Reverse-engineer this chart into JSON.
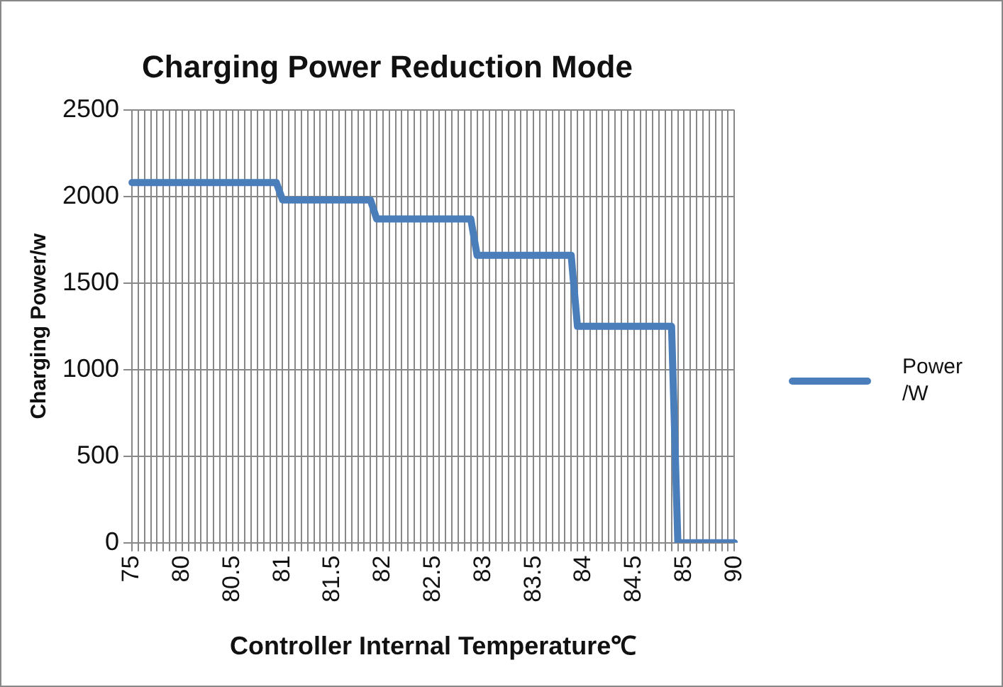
{
  "chart_data": {
    "type": "line",
    "title": "Charging Power Reduction Mode",
    "xlabel": "Controller Internal Temperature℃",
    "ylabel": "Charging Power/w",
    "categories": [
      "75",
      null,
      null,
      null,
      null,
      null,
      null,
      null,
      "80",
      null,
      null,
      null,
      null,
      null,
      null,
      null,
      "80.5",
      null,
      null,
      null,
      null,
      null,
      null,
      null,
      "81",
      null,
      null,
      null,
      null,
      null,
      null,
      null,
      "81.5",
      null,
      null,
      null,
      null,
      null,
      null,
      null,
      "82",
      null,
      null,
      null,
      null,
      null,
      null,
      null,
      "82.5",
      null,
      null,
      null,
      null,
      null,
      null,
      null,
      "83",
      null,
      null,
      null,
      null,
      null,
      null,
      null,
      "83.5",
      null,
      null,
      null,
      null,
      null,
      null,
      null,
      "84",
      null,
      null,
      null,
      null,
      null,
      null,
      null,
      "84.5",
      null,
      null,
      null,
      null,
      null,
      null,
      null,
      "85",
      null,
      null,
      null,
      null,
      null,
      null,
      null,
      "90"
    ],
    "series": [
      {
        "name": "Power /W",
        "color": "#4a7ebb",
        "values": [
          2080,
          2080,
          2080,
          2080,
          2080,
          2080,
          2080,
          2080,
          2080,
          2080,
          2080,
          2080,
          2080,
          2080,
          2080,
          2080,
          2080,
          2080,
          2080,
          2080,
          2080,
          2080,
          2080,
          2080,
          1980,
          1980,
          1980,
          1980,
          1980,
          1980,
          1980,
          1980,
          1980,
          1980,
          1980,
          1980,
          1980,
          1980,
          1980,
          1870,
          1870,
          1870,
          1870,
          1870,
          1870,
          1870,
          1870,
          1870,
          1870,
          1870,
          1870,
          1870,
          1870,
          1870,
          1870,
          1660,
          1660,
          1660,
          1660,
          1660,
          1660,
          1660,
          1660,
          1660,
          1660,
          1660,
          1660,
          1660,
          1660,
          1660,
          1660,
          1250,
          1250,
          1250,
          1250,
          1250,
          1250,
          1250,
          1250,
          1250,
          1250,
          1250,
          1250,
          1250,
          1250,
          1250,
          1250,
          0,
          0,
          0,
          0,
          0,
          0,
          0,
          0,
          0,
          0
        ]
      }
    ],
    "ylim": [
      0,
      2500
    ],
    "yticks": [
      0,
      500,
      1000,
      1500,
      2000,
      2500
    ],
    "grid": true,
    "legend": "right",
    "marker": "none",
    "line_style": "solid"
  }
}
